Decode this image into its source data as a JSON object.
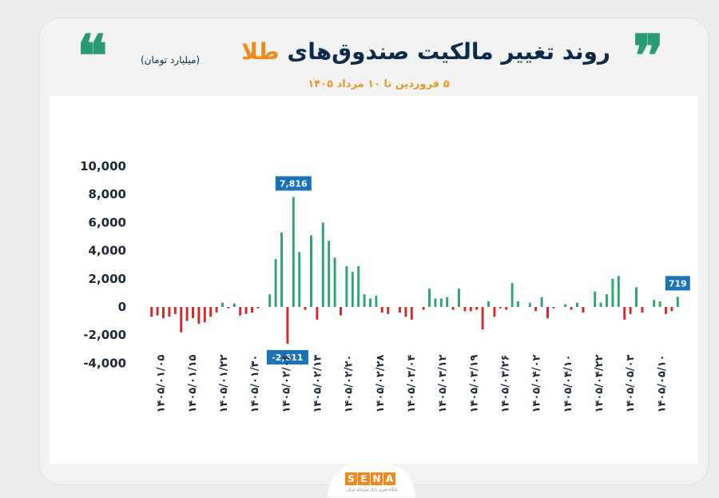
{
  "header": {
    "title_main": "روند تغییر مالکیت صندوق‌های",
    "title_highlight": "طلا",
    "unit": "(میلیارد تومان)",
    "subtitle": "۵ فروردین تا ۱۰ مرداد ۱۴۰۵"
  },
  "logo": {
    "letters": [
      "S",
      "E",
      "N",
      "A"
    ],
    "tagline": "پایگاه خبری بازار سرمایه ایران"
  },
  "colors": {
    "positive": "#2ea66e",
    "negative": "#d12b2b",
    "callout": "#1a73b8",
    "title": "#0d2a4b",
    "accent": "#f08a1c"
  },
  "chart_data": {
    "type": "bar",
    "title": "روند تغییر مالکیت صندوق‌های طلا",
    "ylabel": "میلیارد تومان",
    "ylim": [
      -4000,
      10000
    ],
    "yticks": [
      10000,
      8000,
      6000,
      4000,
      2000,
      0,
      -2000,
      -4000
    ],
    "ytick_labels": [
      "10,000",
      "8,000",
      "6,000",
      "4,000",
      "2,000",
      "0",
      "-2,000",
      "-4,000"
    ],
    "xtick_labels": [
      "۱۴۰۵/۰۱/۰۵",
      "۱۴۰۵/۰۱/۱۵",
      "۱۴۰۵/۰۱/۲۲",
      "۱۴۰۵/۰۱/۳۰",
      "۱۴۰۵/۰۲/۰۶",
      "۱۴۰۵/۰۲/۱۳",
      "۱۴۰۵/۰۲/۲۰",
      "۱۴۰۵/۰۲/۲۸",
      "۱۴۰۵/۰۳/۰۴",
      "۱۴۰۵/۰۳/۱۲",
      "۱۴۰۵/۰۳/۱۹",
      "۱۴۰۵/۰۳/۲۶",
      "۱۴۰۵/۰۴/۰۲",
      "۱۴۰۵/۰۴/۱۰",
      "۱۴۰۵/۰۴/۲۲",
      "۱۴۰۵/۰۵/۰۳",
      "۱۴۰۵/۰۵/۱۰"
    ],
    "values": [
      -700,
      -600,
      -800,
      -700,
      -500,
      -1800,
      -1000,
      -800,
      -1200,
      -1100,
      -700,
      -400,
      300,
      -100,
      250,
      -600,
      -500,
      -400,
      -100,
      0,
      900,
      3400,
      5300,
      -2611,
      7816,
      3900,
      -200,
      5100,
      -900,
      6000,
      4700,
      3500,
      -600,
      2900,
      2500,
      2900,
      900,
      600,
      800,
      -400,
      -500,
      0,
      -400,
      -700,
      -900,
      0,
      -200,
      1300,
      600,
      600,
      700,
      -200,
      1300,
      -300,
      -300,
      -200,
      -1600,
      400,
      -700,
      -100,
      -200,
      1700,
      400,
      0,
      300,
      -300,
      700,
      -800,
      -100,
      0,
      200,
      -200,
      300,
      -400,
      0,
      1100,
      300,
      900,
      2000,
      2200,
      -900,
      -500,
      1400,
      -400,
      0,
      500,
      400,
      -500,
      -300,
      719
    ],
    "callouts": [
      {
        "label": "7,816",
        "value": 7816
      },
      {
        "label": "-2,611",
        "value": -2611
      },
      {
        "label": "719",
        "value": 719
      }
    ]
  }
}
